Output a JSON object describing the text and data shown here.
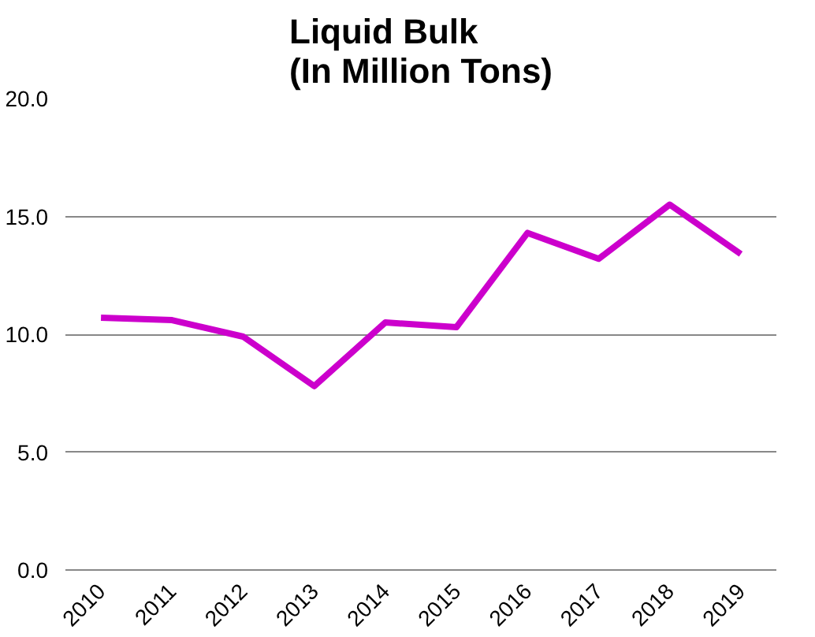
{
  "chart_data": {
    "type": "line",
    "title": "Liquid Bulk\n(In Million Tons)",
    "categories": [
      "2010",
      "2011",
      "2012",
      "2013",
      "2014",
      "2015",
      "2016",
      "2017",
      "2018",
      "2019"
    ],
    "series": [
      {
        "color": "#cc00cc",
        "values": [
          10.7,
          10.6,
          9.9,
          7.8,
          10.5,
          10.3,
          14.3,
          13.2,
          15.5,
          13.4
        ]
      }
    ],
    "ylim": [
      0,
      20
    ],
    "yticks": [
      {
        "value": 0,
        "label": "0.0"
      },
      {
        "value": 5,
        "label": "5.0"
      },
      {
        "value": 10,
        "label": "10.0"
      },
      {
        "value": 15,
        "label": "15.0"
      },
      {
        "value": 20,
        "label": "20.0"
      }
    ],
    "grid": "y",
    "marker": "none",
    "line_style": "solid"
  }
}
